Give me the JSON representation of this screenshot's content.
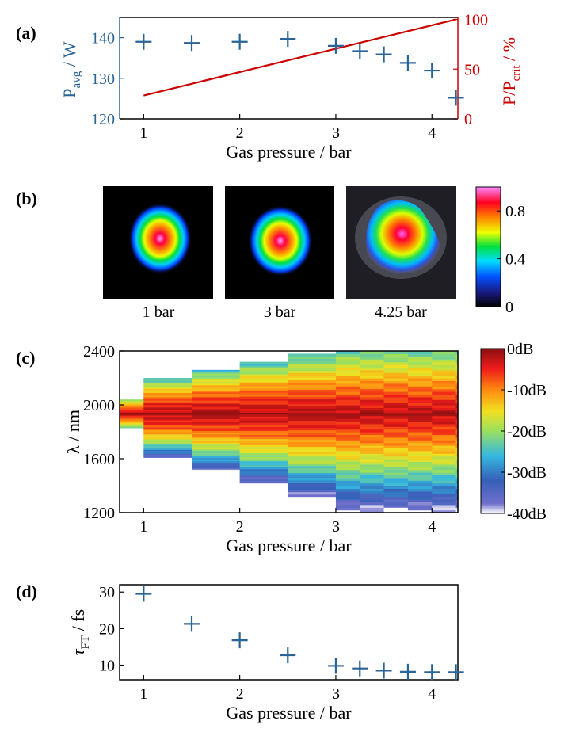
{
  "panel_labels": {
    "a": "(a)",
    "b": "(b)",
    "c": "(c)",
    "d": "(d)"
  },
  "colors": {
    "blue": "#2a6496",
    "red": "#cc0000"
  },
  "chart_data": [
    {
      "id": "a",
      "type": "scatter",
      "xlabel": "Gas pressure / bar",
      "ylabel_main": "P",
      "ylabel_sub": "avg",
      "ylabel_tail": " / W",
      "y2label_main": "P/P",
      "y2label_sub": "crit",
      "y2label_tail": " / %",
      "xlim": [
        0.75,
        4.27
      ],
      "ylim": [
        120,
        145
      ],
      "y2lim": [
        0,
        102
      ],
      "xticks": [
        "1",
        "2",
        "3",
        "4"
      ],
      "yticks": [
        "120",
        "130",
        "140"
      ],
      "y2ticks": [
        "0",
        "50",
        "100"
      ],
      "series": [
        {
          "name": "P_avg",
          "axis": "left",
          "marker": "+",
          "color": "#2a6496",
          "x": [
            1,
            1.5,
            2,
            2.5,
            3,
            3.25,
            3.5,
            3.75,
            4,
            4.25
          ],
          "y": [
            139,
            138.7,
            139,
            139.7,
            138,
            136.7,
            135.9,
            133.8,
            131.9,
            125.2
          ]
        },
        {
          "name": "P/P_crit",
          "axis": "right",
          "marker": "line",
          "color": "#cc0000",
          "x": [
            1,
            4.25
          ],
          "y": [
            23.5,
            100
          ]
        }
      ]
    },
    {
      "id": "b",
      "type": "heatmap",
      "images": [
        {
          "caption": "1 bar",
          "spot": "round-small"
        },
        {
          "caption": "3 bar",
          "spot": "round-small"
        },
        {
          "caption": "4.25 bar",
          "spot": "distorted"
        }
      ],
      "colorbar_range": [
        0,
        1
      ],
      "colorbar_ticks": [
        "0",
        "0.4",
        "0.8"
      ]
    },
    {
      "id": "c",
      "type": "heatmap",
      "xlabel": "Gas pressure / bar",
      "ylabel": "λ / nm",
      "xlim": [
        0.75,
        4.27
      ],
      "ylim": [
        1200,
        2400
      ],
      "xticks": [
        "1",
        "2",
        "3",
        "4"
      ],
      "yticks": [
        "1200",
        "1600",
        "2000",
        "2400"
      ],
      "colorbar_range_db": [
        -40,
        0
      ],
      "colorbar_ticks": [
        "0dB",
        "-10dB",
        "-20dB",
        "-30dB",
        "-40dB"
      ],
      "pressures": [
        0.75,
        1,
        1.5,
        2,
        2.5,
        3,
        3.25,
        3.5,
        3.75,
        4,
        4.25
      ],
      "spectral_extent_nm": [
        [
          1830,
          2040
        ],
        [
          1610,
          2200
        ],
        [
          1510,
          2260
        ],
        [
          1420,
          2320
        ],
        [
          1320,
          2380
        ],
        [
          1200,
          2400
        ],
        [
          1200,
          2400
        ],
        [
          1200,
          2400
        ],
        [
          1200,
          2400
        ],
        [
          1200,
          2400
        ],
        [
          1200,
          2400
        ]
      ]
    },
    {
      "id": "d",
      "type": "scatter",
      "xlabel": "Gas pressure / bar",
      "ylabel_main": "τ",
      "ylabel_sub": "FT",
      "ylabel_tail": " / fs",
      "xlim": [
        0.75,
        4.27
      ],
      "ylim": [
        6,
        32
      ],
      "xticks": [
        "1",
        "2",
        "3",
        "4"
      ],
      "yticks": [
        "10",
        "20",
        "30"
      ],
      "series": [
        {
          "name": "tau_FT",
          "marker": "+",
          "color": "#2a6496",
          "x": [
            1,
            1.5,
            2,
            2.5,
            3,
            3.25,
            3.5,
            3.75,
            4,
            4.25
          ],
          "y": [
            29.5,
            21.3,
            16.8,
            12.7,
            9.8,
            9.1,
            8.5,
            8.2,
            8.1,
            8.1
          ]
        }
      ]
    }
  ]
}
